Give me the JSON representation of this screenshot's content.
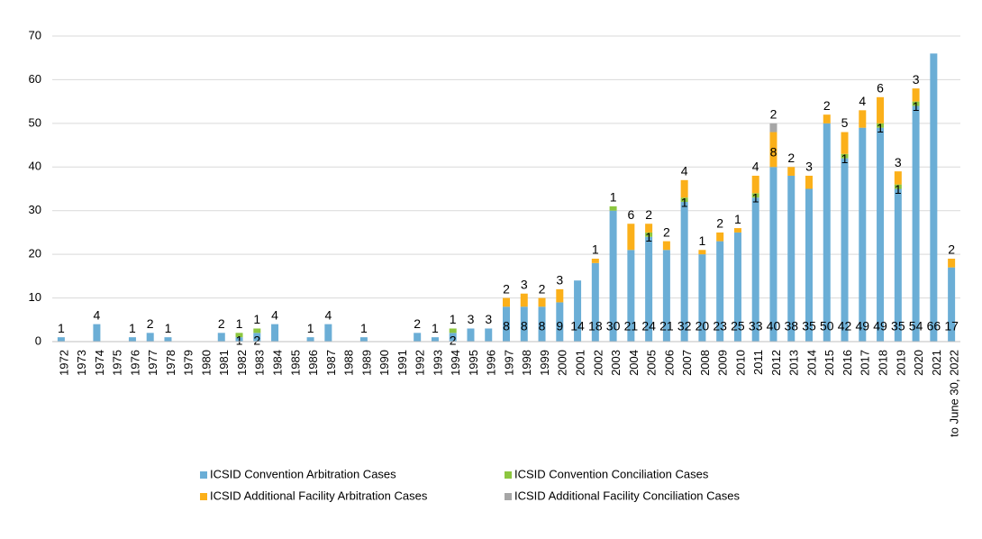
{
  "chart_data": {
    "type": "stacked_bar",
    "categories": [
      "1972",
      "1973",
      "1974",
      "1975",
      "1976",
      "1977",
      "1978",
      "1979",
      "1980",
      "1981",
      "1982",
      "1983",
      "1984",
      "1985",
      "1986",
      "1987",
      "1988",
      "1989",
      "1990",
      "1991",
      "1992",
      "1993",
      "1994",
      "1995",
      "1996",
      "1997",
      "1998",
      "1999",
      "2000",
      "2001",
      "2002",
      "2003",
      "2004",
      "2005",
      "2006",
      "2007",
      "2008",
      "2009",
      "2010",
      "2011",
      "2012",
      "2013",
      "2014",
      "2015",
      "2016",
      "2017",
      "2018",
      "2019",
      "2020",
      "2021",
      "to June 30, 2022"
    ],
    "series": [
      {
        "name": "ICSID Convention Arbitration Cases",
        "color": "#6baed6",
        "values": [
          1,
          0,
          4,
          0,
          1,
          2,
          1,
          0,
          0,
          2,
          1,
          2,
          4,
          0,
          1,
          4,
          0,
          1,
          0,
          0,
          2,
          1,
          2,
          3,
          3,
          8,
          8,
          8,
          9,
          14,
          18,
          30,
          21,
          24,
          21,
          32,
          20,
          23,
          25,
          33,
          40,
          38,
          35,
          50,
          42,
          49,
          49,
          35,
          54,
          66,
          17
        ]
      },
      {
        "name": "ICSID Convention Conciliation Cases",
        "color": "#8cc63f",
        "values": [
          0,
          0,
          0,
          0,
          0,
          0,
          0,
          0,
          0,
          0,
          1,
          1,
          0,
          0,
          0,
          0,
          0,
          0,
          0,
          0,
          0,
          0,
          1,
          0,
          0,
          0,
          0,
          0,
          0,
          0,
          0,
          1,
          0,
          1,
          0,
          1,
          0,
          0,
          0,
          1,
          0,
          0,
          0,
          0,
          1,
          0,
          1,
          1,
          1,
          0,
          0
        ]
      },
      {
        "name": "ICSID Additional Facility Arbitration Cases",
        "color": "#fbb01a",
        "values": [
          0,
          0,
          0,
          0,
          0,
          0,
          0,
          0,
          0,
          0,
          0,
          0,
          0,
          0,
          0,
          0,
          0,
          0,
          0,
          0,
          0,
          0,
          0,
          0,
          0,
          2,
          3,
          2,
          3,
          0,
          1,
          0,
          6,
          2,
          2,
          4,
          1,
          2,
          1,
          4,
          8,
          2,
          3,
          2,
          5,
          4,
          6,
          3,
          3,
          0,
          2
        ]
      },
      {
        "name": "ICSID Additional Facility Conciliation Cases",
        "color": "#a6a6a6",
        "values": [
          0,
          0,
          0,
          0,
          0,
          0,
          0,
          0,
          0,
          0,
          0,
          0,
          0,
          0,
          0,
          0,
          0,
          0,
          0,
          0,
          0,
          0,
          0,
          0,
          0,
          0,
          0,
          0,
          0,
          0,
          0,
          0,
          0,
          0,
          0,
          0,
          0,
          0,
          0,
          0,
          2,
          0,
          0,
          0,
          0,
          0,
          0,
          0,
          0,
          0,
          0
        ]
      }
    ],
    "ylim": [
      0,
      70
    ],
    "yticks": [
      0,
      10,
      20,
      30,
      40,
      50,
      60,
      70
    ],
    "grid": true
  }
}
